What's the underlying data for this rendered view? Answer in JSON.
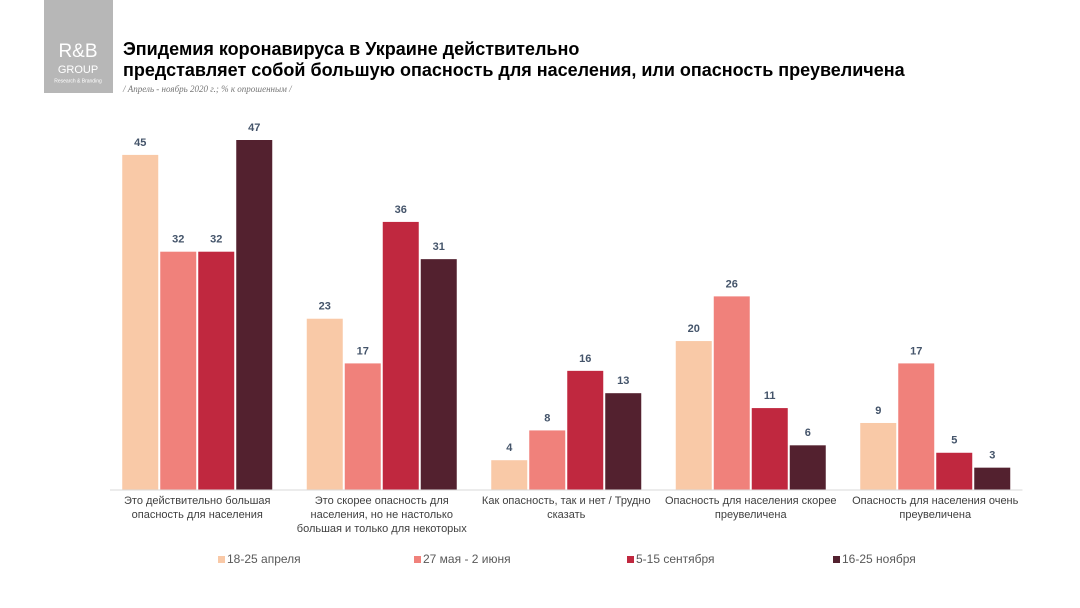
{
  "logo": {
    "name": "R&B",
    "line2": "GROUP",
    "line3": "Research & Branding"
  },
  "chart_data": {
    "type": "bar",
    "title": [
      "Эпидемия коронавируса в Украине действительно",
      "представляет собой большую опасность для населения, или опасность преувеличена"
    ],
    "subtitle": "/ Апрель - ноябрь 2020 г.; % к опрошенным /",
    "categories": [
      "Это действительно большая опасность для населения",
      "Это скорее опасность для населения, но не настолько большая и только для некоторых",
      "Как опасность, так и нет / Трудно сказать",
      "Опасность для населения скорее преувеличена",
      "Опасность для населения очень преувеличена"
    ],
    "series": [
      {
        "name": "18-25 апреля",
        "color": "#f9c9a7",
        "values": [
          45,
          23,
          4,
          20,
          9
        ]
      },
      {
        "name": "27 мая - 2 июня",
        "color": "#f0817b",
        "values": [
          32,
          17,
          8,
          26,
          17
        ]
      },
      {
        "name": "5-15 сентября",
        "color": "#c0283f",
        "values": [
          32,
          36,
          16,
          11,
          5
        ]
      },
      {
        "name": "16-25 ноября",
        "color": "#53212f",
        "values": [
          47,
          31,
          13,
          6,
          3
        ]
      }
    ]
  }
}
